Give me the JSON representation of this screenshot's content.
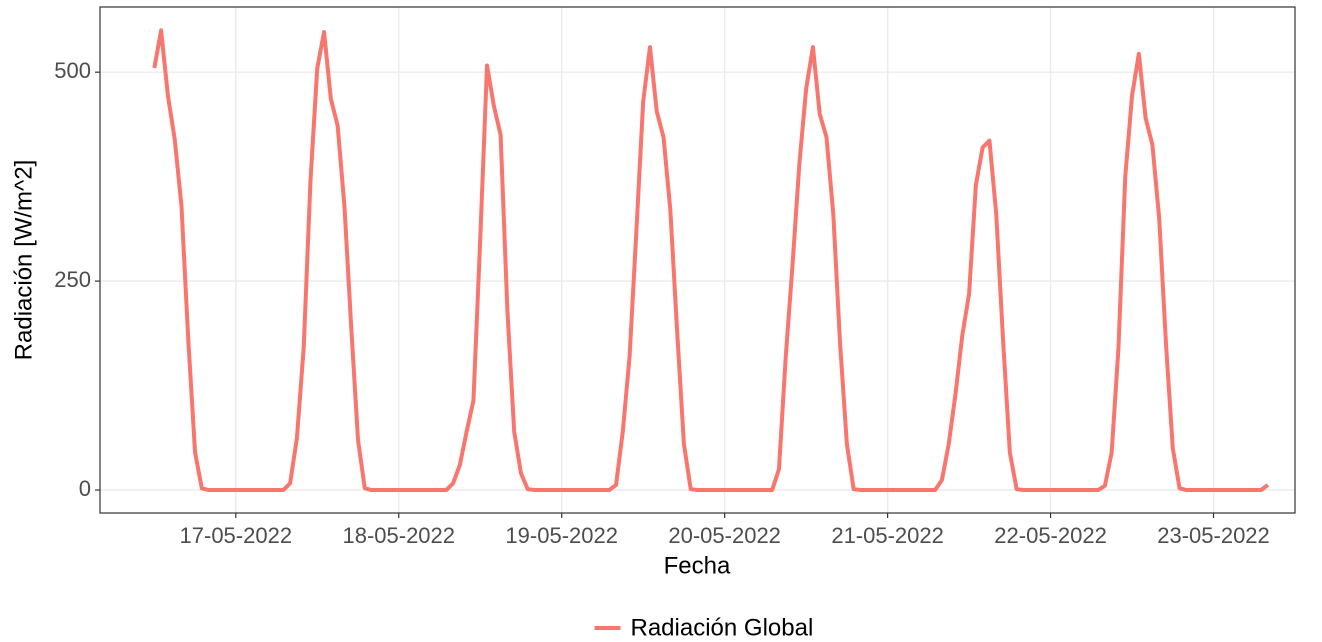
{
  "chart_data": {
    "type": "line",
    "x_label": "Fecha",
    "y_label": "Radiación [W/m^2]",
    "x": [
      "2022-05-16T12:00",
      "2022-05-16T13:00",
      "2022-05-16T14:00",
      "2022-05-16T15:00",
      "2022-05-16T16:00",
      "2022-05-16T17:00",
      "2022-05-16T18:00",
      "2022-05-16T19:00",
      "2022-05-16T20:00",
      "2022-05-16T21:00",
      "2022-05-16T22:00",
      "2022-05-16T23:00",
      "2022-05-17T00:00",
      "2022-05-17T01:00",
      "2022-05-17T02:00",
      "2022-05-17T03:00",
      "2022-05-17T04:00",
      "2022-05-17T05:00",
      "2022-05-17T06:00",
      "2022-05-17T07:00",
      "2022-05-17T08:00",
      "2022-05-17T09:00",
      "2022-05-17T10:00",
      "2022-05-17T11:00",
      "2022-05-17T12:00",
      "2022-05-17T13:00",
      "2022-05-17T14:00",
      "2022-05-17T15:00",
      "2022-05-17T16:00",
      "2022-05-17T17:00",
      "2022-05-17T18:00",
      "2022-05-17T19:00",
      "2022-05-17T20:00",
      "2022-05-17T21:00",
      "2022-05-17T22:00",
      "2022-05-17T23:00",
      "2022-05-18T00:00",
      "2022-05-18T01:00",
      "2022-05-18T02:00",
      "2022-05-18T03:00",
      "2022-05-18T04:00",
      "2022-05-18T05:00",
      "2022-05-18T06:00",
      "2022-05-18T07:00",
      "2022-05-18T08:00",
      "2022-05-18T09:00",
      "2022-05-18T10:00",
      "2022-05-18T11:00",
      "2022-05-18T12:00",
      "2022-05-18T13:00",
      "2022-05-18T14:00",
      "2022-05-18T15:00",
      "2022-05-18T16:00",
      "2022-05-18T17:00",
      "2022-05-18T18:00",
      "2022-05-18T19:00",
      "2022-05-18T20:00",
      "2022-05-18T21:00",
      "2022-05-18T22:00",
      "2022-05-18T23:00",
      "2022-05-19T00:00",
      "2022-05-19T01:00",
      "2022-05-19T02:00",
      "2022-05-19T03:00",
      "2022-05-19T04:00",
      "2022-05-19T05:00",
      "2022-05-19T06:00",
      "2022-05-19T07:00",
      "2022-05-19T08:00",
      "2022-05-19T09:00",
      "2022-05-19T10:00",
      "2022-05-19T11:00",
      "2022-05-19T12:00",
      "2022-05-19T13:00",
      "2022-05-19T14:00",
      "2022-05-19T15:00",
      "2022-05-19T16:00",
      "2022-05-19T17:00",
      "2022-05-19T18:00",
      "2022-05-19T19:00",
      "2022-05-19T20:00",
      "2022-05-19T21:00",
      "2022-05-19T22:00",
      "2022-05-19T23:00",
      "2022-05-20T00:00",
      "2022-05-20T01:00",
      "2022-05-20T02:00",
      "2022-05-20T03:00",
      "2022-05-20T04:00",
      "2022-05-20T05:00",
      "2022-05-20T06:00",
      "2022-05-20T07:00",
      "2022-05-20T08:00",
      "2022-05-20T09:00",
      "2022-05-20T10:00",
      "2022-05-20T11:00",
      "2022-05-20T12:00",
      "2022-05-20T13:00",
      "2022-05-20T14:00",
      "2022-05-20T15:00",
      "2022-05-20T16:00",
      "2022-05-20T17:00",
      "2022-05-20T18:00",
      "2022-05-20T19:00",
      "2022-05-20T20:00",
      "2022-05-20T21:00",
      "2022-05-20T22:00",
      "2022-05-20T23:00",
      "2022-05-21T00:00",
      "2022-05-21T01:00",
      "2022-05-21T02:00",
      "2022-05-21T03:00",
      "2022-05-21T04:00",
      "2022-05-21T05:00",
      "2022-05-21T06:00",
      "2022-05-21T07:00",
      "2022-05-21T08:00",
      "2022-05-21T09:00",
      "2022-05-21T10:00",
      "2022-05-21T11:00",
      "2022-05-21T12:00",
      "2022-05-21T13:00",
      "2022-05-21T14:00",
      "2022-05-21T15:00",
      "2022-05-21T16:00",
      "2022-05-21T17:00",
      "2022-05-21T18:00",
      "2022-05-21T19:00",
      "2022-05-21T20:00",
      "2022-05-21T21:00",
      "2022-05-21T22:00",
      "2022-05-21T23:00",
      "2022-05-22T00:00",
      "2022-05-22T01:00",
      "2022-05-22T02:00",
      "2022-05-22T03:00",
      "2022-05-22T04:00",
      "2022-05-22T05:00",
      "2022-05-22T06:00",
      "2022-05-22T07:00",
      "2022-05-22T08:00",
      "2022-05-22T09:00",
      "2022-05-22T10:00",
      "2022-05-22T11:00",
      "2022-05-22T12:00",
      "2022-05-22T13:00",
      "2022-05-22T14:00",
      "2022-05-22T15:00",
      "2022-05-22T16:00",
      "2022-05-22T17:00",
      "2022-05-22T18:00",
      "2022-05-22T19:00",
      "2022-05-22T20:00",
      "2022-05-22T21:00",
      "2022-05-22T22:00",
      "2022-05-22T23:00",
      "2022-05-23T00:00",
      "2022-05-23T01:00",
      "2022-05-23T02:00",
      "2022-05-23T03:00",
      "2022-05-23T04:00",
      "2022-05-23T05:00",
      "2022-05-23T06:00",
      "2022-05-23T07:00",
      "2022-05-23T08:00"
    ],
    "series": [
      {
        "name": "Radiación Global",
        "color": "#f8766d",
        "values": [
          505,
          550,
          472,
          420,
          340,
          180,
          45,
          2,
          0,
          0,
          0,
          0,
          0,
          0,
          0,
          0,
          0,
          0,
          0,
          0,
          8,
          62,
          170,
          370,
          505,
          548,
          468,
          436,
          340,
          195,
          60,
          2,
          0,
          0,
          0,
          0,
          0,
          0,
          0,
          0,
          0,
          0,
          0,
          0,
          8,
          30,
          70,
          107,
          300,
          508,
          460,
          425,
          215,
          70,
          20,
          1,
          0,
          0,
          0,
          0,
          0,
          0,
          0,
          0,
          0,
          0,
          0,
          0,
          6,
          70,
          160,
          310,
          465,
          530,
          453,
          422,
          335,
          190,
          55,
          1,
          0,
          0,
          0,
          0,
          0,
          0,
          0,
          0,
          0,
          0,
          0,
          0,
          25,
          160,
          270,
          390,
          480,
          530,
          450,
          422,
          330,
          175,
          55,
          1,
          0,
          0,
          0,
          0,
          0,
          0,
          0,
          0,
          0,
          0,
          0,
          0,
          12,
          55,
          115,
          185,
          235,
          365,
          410,
          418,
          330,
          180,
          45,
          1,
          0,
          0,
          0,
          0,
          0,
          0,
          0,
          0,
          0,
          0,
          0,
          0,
          5,
          45,
          170,
          375,
          472,
          522,
          445,
          413,
          325,
          175,
          50,
          2,
          0,
          0,
          0,
          0,
          0,
          0,
          0,
          0,
          0,
          0,
          0,
          0,
          6
        ]
      }
    ],
    "xlim": [
      "2022-05-16T04:00",
      "2022-05-23T12:00"
    ],
    "xticks": [
      {
        "value": "2022-05-17T00:00",
        "label": "17-05-2022"
      },
      {
        "value": "2022-05-18T00:00",
        "label": "18-05-2022"
      },
      {
        "value": "2022-05-19T00:00",
        "label": "19-05-2022"
      },
      {
        "value": "2022-05-20T00:00",
        "label": "20-05-2022"
      },
      {
        "value": "2022-05-21T00:00",
        "label": "21-05-2022"
      },
      {
        "value": "2022-05-22T00:00",
        "label": "22-05-2022"
      },
      {
        "value": "2022-05-23T00:00",
        "label": "23-05-2022"
      }
    ],
    "ylim": [
      -27.5,
      578
    ],
    "yticks": [
      0,
      250,
      500
    ],
    "grid": true,
    "legend": "bottom"
  }
}
